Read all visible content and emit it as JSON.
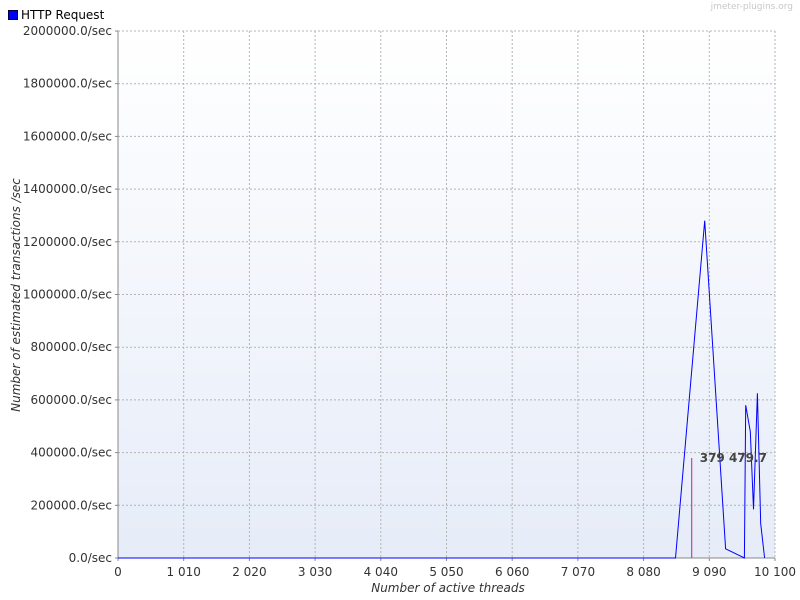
{
  "watermark": "jmeter-plugins.org",
  "legend": [
    {
      "label": "HTTP Request",
      "color": "#0000ff"
    }
  ],
  "chart_data": {
    "type": "line",
    "title": "",
    "xlabel": "Number of active threads",
    "ylabel": "Number of estimated transactions /sec",
    "xlim": [
      0,
      10100
    ],
    "ylim": [
      0,
      2000000
    ],
    "x_ticks": [
      {
        "value": 0,
        "label": "0"
      },
      {
        "value": 1010,
        "label": "1 010"
      },
      {
        "value": 2020,
        "label": "2 020"
      },
      {
        "value": 3030,
        "label": "3 030"
      },
      {
        "value": 4040,
        "label": "4 040"
      },
      {
        "value": 5050,
        "label": "5 050"
      },
      {
        "value": 6060,
        "label": "6 060"
      },
      {
        "value": 7070,
        "label": "7 070"
      },
      {
        "value": 8080,
        "label": "8 080"
      },
      {
        "value": 9090,
        "label": "9 090"
      },
      {
        "value": 10100,
        "label": "10 100"
      }
    ],
    "y_ticks": [
      {
        "value": 0,
        "label": "0.0/sec"
      },
      {
        "value": 200000,
        "label": "200000.0/sec"
      },
      {
        "value": 400000,
        "label": "400000.0/sec"
      },
      {
        "value": 600000,
        "label": "600000.0/sec"
      },
      {
        "value": 800000,
        "label": "800000.0/sec"
      },
      {
        "value": 1000000,
        "label": "1000000.0/sec"
      },
      {
        "value": 1200000,
        "label": "1200000.0/sec"
      },
      {
        "value": 1400000,
        "label": "1400000.0/sec"
      },
      {
        "value": 1600000,
        "label": "1600000.0/sec"
      },
      {
        "value": 1800000,
        "label": "1800000.0/sec"
      },
      {
        "value": 2000000,
        "label": "2000000.0/sec"
      }
    ],
    "grid": true,
    "series": [
      {
        "name": "HTTP Request",
        "color": "#0000ff",
        "x": [
          0,
          8570,
          9020,
          9340,
          9630,
          9650,
          9720,
          9770,
          9830,
          9880,
          9940
        ],
        "y": [
          0,
          0,
          1280000,
          35000,
          0,
          580000,
          480000,
          185000,
          625000,
          130000,
          0
        ]
      }
    ],
    "annotations": [
      {
        "x": 8820,
        "y": 379479.7,
        "label": "379 479.7",
        "color": "#c0208c"
      }
    ]
  }
}
